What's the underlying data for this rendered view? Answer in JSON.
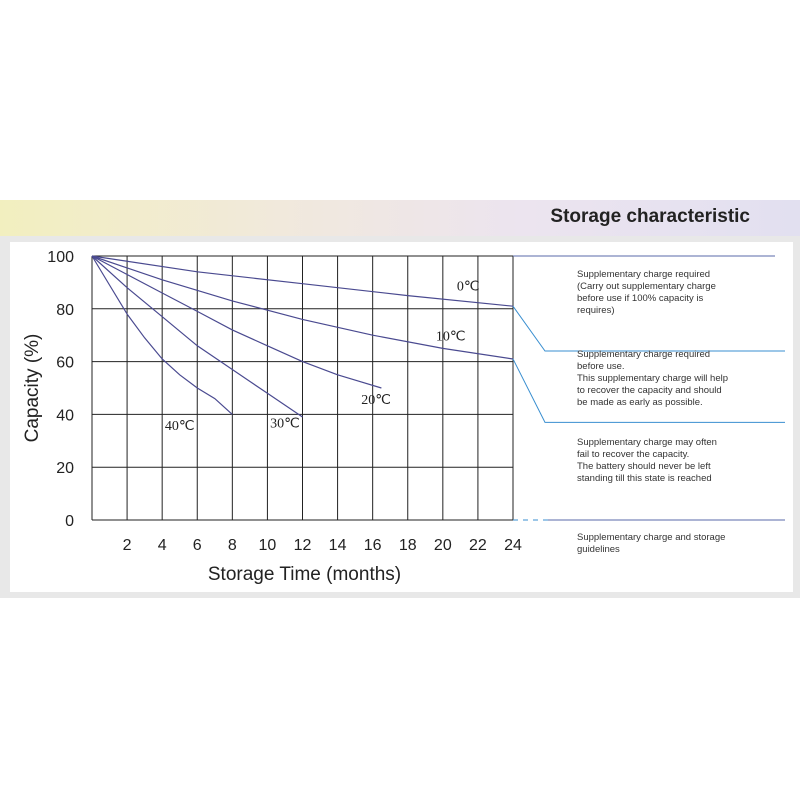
{
  "header": {
    "title": "Storage characteristic"
  },
  "chart_data": {
    "type": "line",
    "title": "",
    "xlabel": "Storage Time (months)",
    "ylabel": "Capacity  (%)",
    "xlim": [
      0,
      24
    ],
    "ylim": [
      0,
      100
    ],
    "x_ticks": [
      2,
      4,
      6,
      8,
      10,
      12,
      14,
      16,
      18,
      20,
      22,
      24
    ],
    "y_ticks": [
      0,
      20,
      40,
      60,
      80,
      100
    ],
    "grid": true,
    "series": [
      {
        "name": "0℃",
        "x": [
          0,
          6,
          12,
          18,
          24
        ],
        "y": [
          100,
          94,
          89.5,
          85,
          81
        ]
      },
      {
        "name": "10℃",
        "x": [
          0,
          4,
          8,
          12,
          16,
          20,
          24
        ],
        "y": [
          100,
          91,
          83,
          76,
          70,
          65,
          61
        ]
      },
      {
        "name": "20℃",
        "x": [
          0,
          2,
          4,
          6,
          8,
          10,
          12,
          14,
          16.5
        ],
        "y": [
          100,
          93,
          86,
          79,
          72,
          66,
          60,
          55,
          50
        ]
      },
      {
        "name": "30℃",
        "x": [
          0,
          2,
          4,
          6,
          8,
          10,
          12
        ],
        "y": [
          100,
          88,
          77,
          66,
          57,
          48,
          39
        ]
      },
      {
        "name": "40℃",
        "x": [
          0,
          1,
          2,
          3,
          4,
          5,
          6,
          7,
          8
        ],
        "y": [
          100,
          89,
          78,
          69,
          61,
          55,
          50,
          46,
          40
        ]
      }
    ],
    "zones": [
      {
        "text": "Supplementary charge required\n(Carry out supplementary charge\nbefore use if 100% capacity is\nrequires)"
      },
      {
        "text": "Supplementary charge required\nbefore use.\nThis supplementary charge will help\nto recover the capacity and should\nbe made  as early as possible."
      },
      {
        "text": "Supplementary charge may often\nfail to recover the capacity.\nThe battery should never be left\nstanding till this state is reached"
      },
      {
        "text": "Supplementary charge and storage\nguidelines"
      }
    ],
    "colors": {
      "curve": "#4a4a90",
      "grid": "#222222",
      "connector": "#3a8fd0",
      "zone_line": "#5a6aa8"
    }
  }
}
